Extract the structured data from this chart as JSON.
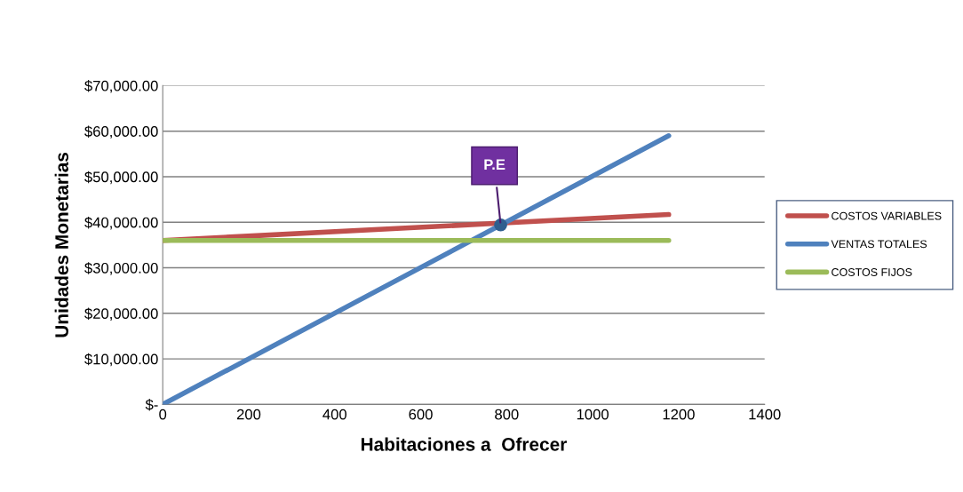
{
  "chart_data": {
    "type": "line",
    "xlabel": "Habitaciones a  Ofrecer",
    "ylabel": "Unidades Monetarias",
    "xlim": [
      0,
      1400
    ],
    "xticks": [
      0,
      200,
      400,
      600,
      800,
      1000,
      1200,
      1400
    ],
    "ylim": [
      0,
      70000
    ],
    "yticks": [
      {
        "value": 0,
        "label": "$-"
      },
      {
        "value": 10000,
        "label": "$10,000.00"
      },
      {
        "value": 20000,
        "label": "$20,000.00"
      },
      {
        "value": 30000,
        "label": "$30,000.00"
      },
      {
        "value": 40000,
        "label": "$40,000.00"
      },
      {
        "value": 50000,
        "label": "$50,000.00"
      },
      {
        "value": 60000,
        "label": "$60,000.00"
      },
      {
        "value": 70000,
        "label": "$70,000.00"
      }
    ],
    "grid": "y",
    "legend": "right",
    "marker": "none",
    "line_style": "solid",
    "series": [
      {
        "name": "COSTOS VARIABLES",
        "color": "#c0504d",
        "x": [
          0,
          1177
        ],
        "values": [
          36000,
          41700
        ]
      },
      {
        "name": "VENTAS TOTALES",
        "color": "#4f81bd",
        "x": [
          0,
          1177
        ],
        "values": [
          0,
          59000
        ]
      },
      {
        "name": "COSTOS FIJOS",
        "color": "#9bbb59",
        "x": [
          0,
          1177
        ],
        "values": [
          36000,
          36000
        ]
      },
      {
        "type": "scatter",
        "marker": "circle",
        "color": "#2f5f8f",
        "x": [
          786
        ],
        "values": [
          39400
        ]
      }
    ],
    "annotations": [
      {
        "text": "P.E",
        "x": 786,
        "y": 39400
      }
    ]
  }
}
